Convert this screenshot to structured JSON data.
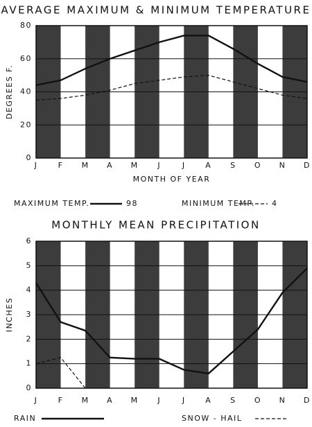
{
  "chart_data": [
    {
      "type": "line",
      "title": "AVERAGE MAXIMUM & MINIMUM TEMPERATURE",
      "x_label": "MONTH OF YEAR",
      "y_label": "DEGREES F.",
      "categories": [
        "J",
        "F",
        "M",
        "A",
        "M",
        "J",
        "J",
        "A",
        "S",
        "O",
        "N",
        "D"
      ],
      "ylim": [
        0,
        80
      ],
      "yticks": [
        0,
        20,
        40,
        60,
        80
      ],
      "grid": true,
      "series": [
        {
          "name": "MAXIMUM TEMP.",
          "color": "#111111",
          "style": "solid",
          "note": "98",
          "values": [
            44,
            47,
            54,
            60,
            65,
            70,
            74,
            74,
            66,
            57,
            49,
            46
          ]
        },
        {
          "name": "MINIMUM TEMP.",
          "color": "#111111",
          "style": "dashed",
          "note": "4",
          "values": [
            35,
            36,
            38,
            41,
            45,
            47,
            49,
            50,
            46,
            42,
            38,
            36
          ]
        }
      ]
    },
    {
      "type": "line",
      "title": "MONTHLY MEAN PRECIPITATION",
      "y_label": "INCHES",
      "categories": [
        "J",
        "F",
        "M",
        "A",
        "M",
        "J",
        "J",
        "A",
        "S",
        "O",
        "N",
        "D"
      ],
      "ylim": [
        0,
        6
      ],
      "yticks": [
        0,
        1,
        2,
        3,
        4,
        5,
        6
      ],
      "grid": true,
      "series": [
        {
          "name": "RAIN",
          "color": "#111111",
          "style": "solid",
          "values": [
            4.3,
            2.7,
            2.35,
            1.25,
            1.2,
            1.2,
            0.75,
            0.6,
            1.5,
            2.4,
            3.9,
            4.9
          ]
        },
        {
          "name": "SNOW - HAIL",
          "color": "#111111",
          "style": "dashed",
          "values": [
            1.0,
            1.25,
            0,
            null,
            null,
            null,
            null,
            null,
            null,
            null,
            null,
            null
          ]
        }
      ]
    }
  ]
}
